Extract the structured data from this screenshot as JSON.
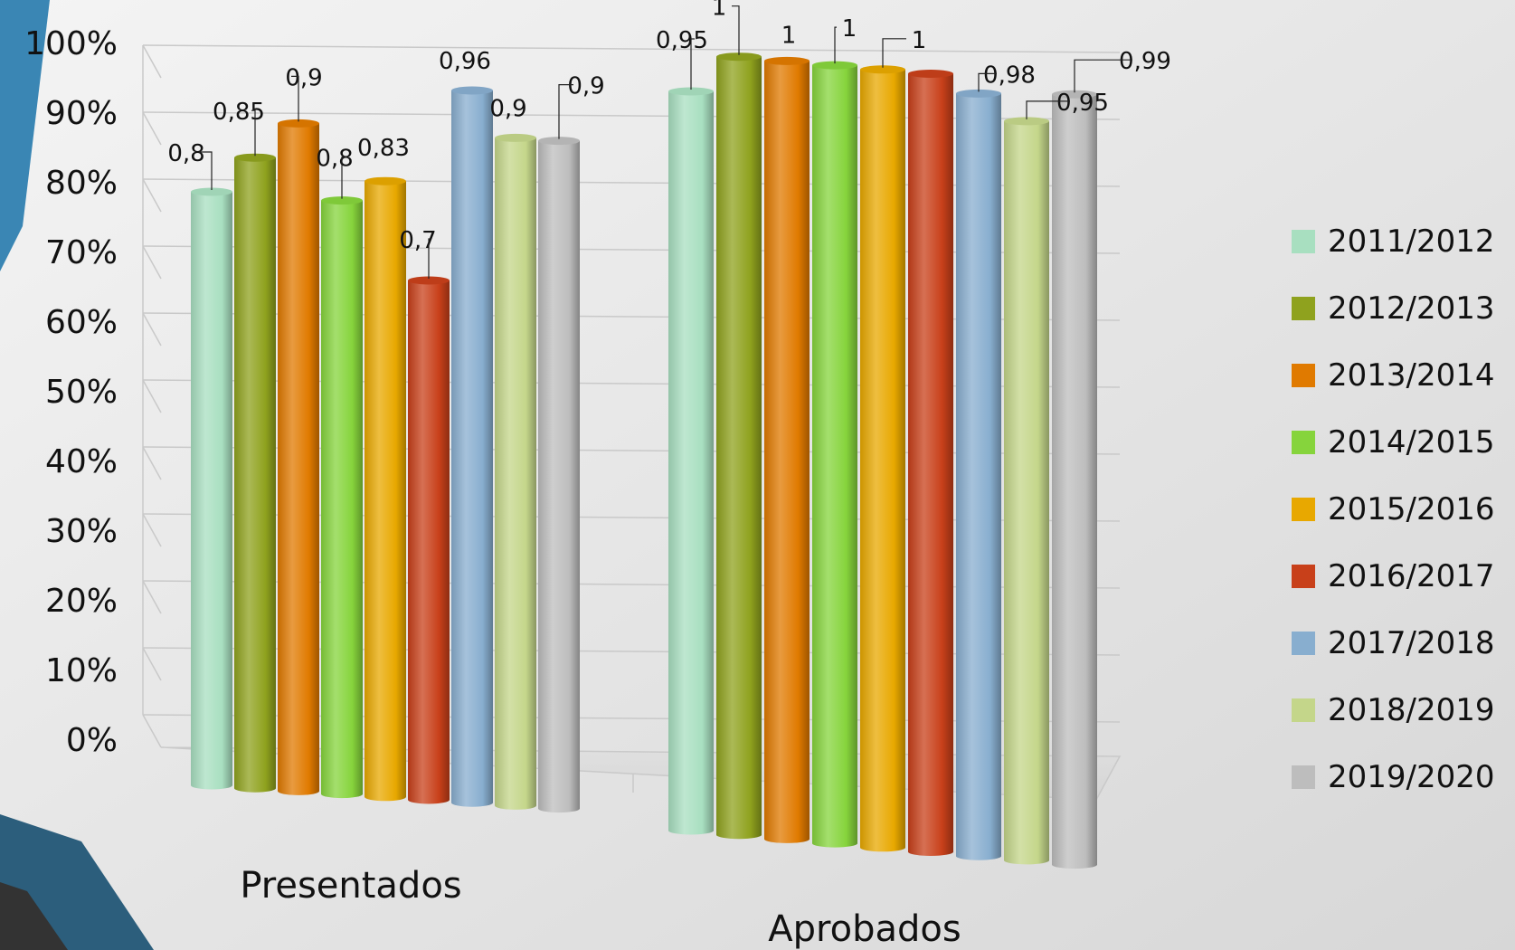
{
  "chart_data": {
    "type": "bar",
    "categories": [
      "Presentados",
      "Aprobados"
    ],
    "ylim": [
      0,
      1
    ],
    "y_ticks": [
      "0%",
      "10%",
      "20%",
      "30%",
      "40%",
      "50%",
      "60%",
      "70%",
      "80%",
      "90%",
      "100%"
    ],
    "grid": true,
    "legend_position": "right",
    "series": [
      {
        "name": "2011/2012",
        "color": "#a8dfc0",
        "values": [
          0.8,
          0.95
        ],
        "labels": [
          "0,8",
          "0,95"
        ]
      },
      {
        "name": "2012/2013",
        "color": "#8fa21e",
        "values": [
          0.85,
          1.0
        ],
        "labels": [
          "0,85",
          "1"
        ]
      },
      {
        "name": "2013/2014",
        "color": "#e07a00",
        "values": [
          0.9,
          1.0
        ],
        "labels": [
          "0,9",
          "1"
        ]
      },
      {
        "name": "2014/2015",
        "color": "#86d43c",
        "values": [
          0.8,
          1.0
        ],
        "labels": [
          "0,8",
          "1"
        ]
      },
      {
        "name": "2015/2016",
        "color": "#e8a800",
        "values": [
          0.83,
          1.0
        ],
        "labels": [
          "0,83",
          "1"
        ]
      },
      {
        "name": "2016/2017",
        "color": "#c8401a",
        "values": [
          0.7,
          1.0
        ],
        "labels": [
          "0,7",
          ""
        ]
      },
      {
        "name": "2017/2018",
        "color": "#88aecf",
        "values": [
          0.96,
          0.98
        ],
        "labels": [
          "0,96",
          "0,98"
        ]
      },
      {
        "name": "2018/2019",
        "color": "#c4d68a",
        "values": [
          0.9,
          0.95
        ],
        "labels": [
          "0,9",
          "0,95"
        ]
      },
      {
        "name": "2019/2020",
        "color": "#bdbdbd",
        "values": [
          0.9,
          0.99
        ],
        "labels": [
          "0,9",
          "0,99"
        ]
      }
    ]
  },
  "decor": {
    "accent": "#3a86b4",
    "accent_dark": "#2c5e7c",
    "corner_dark": "#333333"
  }
}
